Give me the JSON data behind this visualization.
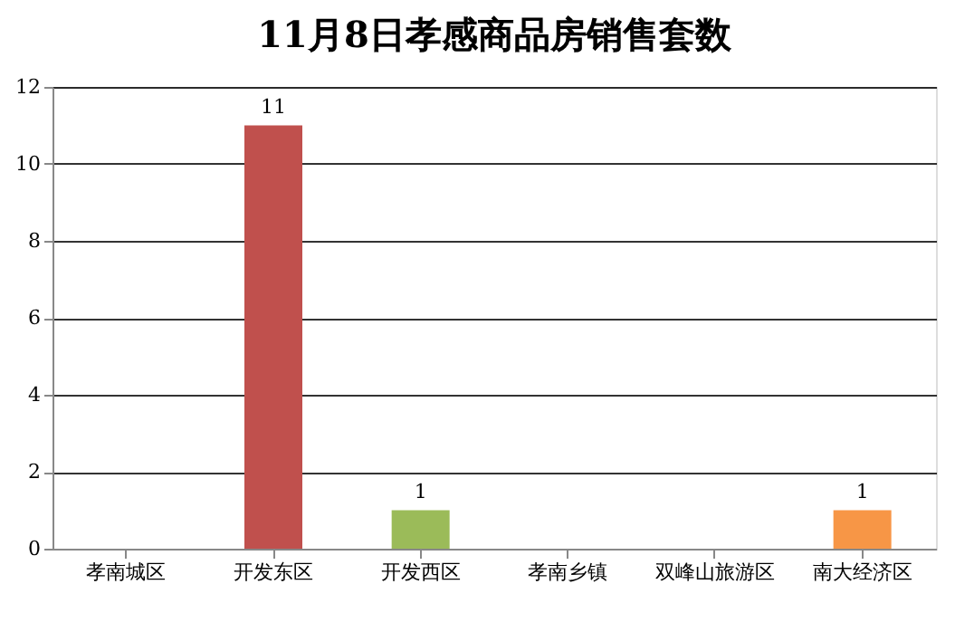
{
  "chart_data": {
    "type": "bar",
    "title": "11月8日孝感商品房销售套数",
    "categories": [
      "孝南城区",
      "开发东区",
      "开发西区",
      "孝南乡镇",
      "双峰山旅游区",
      "南大经济区"
    ],
    "values": [
      0,
      11,
      1,
      0,
      0,
      1
    ],
    "colors": [
      "#4f81bd",
      "#c0504d",
      "#9bbb59",
      "#8064a2",
      "#4bacc6",
      "#f79646"
    ],
    "value_labels": [
      null,
      "11",
      "1",
      null,
      null,
      "1"
    ],
    "ylim": [
      0,
      12
    ],
    "yticks": [
      0,
      2,
      4,
      6,
      8,
      10,
      12
    ],
    "grid": "y"
  }
}
